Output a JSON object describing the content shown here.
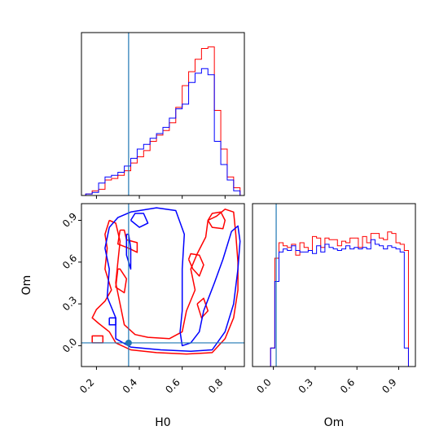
{
  "chart_data": [
    {
      "type": "histogram",
      "panel": "H0 marginal",
      "xlim": [
        0.13,
        0.89
      ],
      "truth": 0.35,
      "bin_edges": [
        0.15,
        0.18,
        0.21,
        0.24,
        0.27,
        0.3,
        0.33,
        0.36,
        0.39,
        0.42,
        0.45,
        0.48,
        0.51,
        0.54,
        0.57,
        0.6,
        0.63,
        0.66,
        0.69,
        0.72,
        0.75,
        0.78,
        0.81,
        0.84,
        0.87
      ],
      "series": [
        {
          "color": "#ff0000",
          "values": [
            0.01,
            0.03,
            0.04,
            0.1,
            0.11,
            0.13,
            0.16,
            0.21,
            0.25,
            0.29,
            0.35,
            0.39,
            0.42,
            0.47,
            0.57,
            0.71,
            0.8,
            0.88,
            0.95,
            0.96,
            0.55,
            0.3,
            0.12,
            0.05
          ]
        },
        {
          "color": "#0000ff",
          "values": [
            0.01,
            0.02,
            0.08,
            0.12,
            0.13,
            0.15,
            0.19,
            0.24,
            0.3,
            0.33,
            0.37,
            0.4,
            0.44,
            0.5,
            0.56,
            0.59,
            0.73,
            0.79,
            0.82,
            0.78,
            0.35,
            0.2,
            0.1,
            0.03
          ]
        }
      ]
    },
    {
      "type": "histogram",
      "panel": "Om marginal",
      "xlabel": "Om",
      "xlim": [
        -0.15,
        1.02
      ],
      "xticks": [
        "0.0",
        "0.3",
        "0.6",
        "0.9"
      ],
      "truth": 0.02,
      "bin_edges": [
        -0.02,
        0.01,
        0.04,
        0.07,
        0.1,
        0.13,
        0.16,
        0.19,
        0.22,
        0.25,
        0.28,
        0.31,
        0.34,
        0.37,
        0.4,
        0.43,
        0.46,
        0.49,
        0.52,
        0.55,
        0.58,
        0.61,
        0.64,
        0.67,
        0.7,
        0.73,
        0.76,
        0.79,
        0.82,
        0.85,
        0.88,
        0.91,
        0.94,
        0.97,
        1.0
      ],
      "series": [
        {
          "color": "#ff0000",
          "values": [
            0.12,
            0.7,
            0.8,
            0.78,
            0.77,
            0.79,
            0.72,
            0.8,
            0.77,
            0.75,
            0.84,
            0.83,
            0.77,
            0.83,
            0.82,
            0.82,
            0.78,
            0.81,
            0.8,
            0.83,
            0.83,
            0.77,
            0.84,
            0.8,
            0.86,
            0.86,
            0.83,
            0.82,
            0.87,
            0.86,
            0.8,
            0.79,
            0.75,
            0.0
          ]
        },
        {
          "color": "#0000ff",
          "values": [
            0.12,
            0.55,
            0.74,
            0.76,
            0.75,
            0.78,
            0.75,
            0.74,
            0.74,
            0.75,
            0.73,
            0.78,
            0.74,
            0.79,
            0.77,
            0.76,
            0.75,
            0.76,
            0.78,
            0.76,
            0.77,
            0.76,
            0.77,
            0.76,
            0.82,
            0.79,
            0.78,
            0.76,
            0.78,
            0.77,
            0.76,
            0.74,
            0.12,
            0.0
          ]
        }
      ]
    },
    {
      "type": "contour",
      "panel": "H0 vs Om",
      "xlabel": "H0",
      "ylabel": "Om",
      "xlim": [
        0.13,
        0.89
      ],
      "ylim": [
        -0.15,
        1.02
      ],
      "xticks": [
        "0.2",
        "0.4",
        "0.6",
        "0.8"
      ],
      "yticks": [
        "0.0",
        "0.3",
        "0.6",
        "0.9"
      ],
      "truth": [
        0.35,
        0.02
      ],
      "series": [
        {
          "color": "#ff0000",
          "contours": [
            [
              [
                0.26,
                0.9
              ],
              [
                0.24,
                0.8
              ],
              [
                0.25,
                0.7
              ],
              [
                0.24,
                0.55
              ],
              [
                0.27,
                0.4
              ],
              [
                0.24,
                0.32
              ],
              [
                0.2,
                0.26
              ],
              [
                0.18,
                0.2
              ],
              [
                0.21,
                0.16
              ],
              [
                0.26,
                0.1
              ],
              [
                0.29,
                0.02
              ],
              [
                0.36,
                -0.03
              ],
              [
                0.48,
                -0.05
              ],
              [
                0.62,
                -0.06
              ],
              [
                0.74,
                -0.05
              ],
              [
                0.8,
                0.05
              ],
              [
                0.84,
                0.2
              ],
              [
                0.86,
                0.4
              ],
              [
                0.86,
                0.6
              ],
              [
                0.85,
                0.8
              ],
              [
                0.84,
                0.96
              ],
              [
                0.8,
                0.98
              ],
              [
                0.76,
                0.93
              ],
              [
                0.72,
                0.9
              ],
              [
                0.71,
                0.78
              ],
              [
                0.67,
                0.66
              ],
              [
                0.64,
                0.55
              ],
              [
                0.66,
                0.4
              ],
              [
                0.62,
                0.25
              ],
              [
                0.6,
                0.1
              ],
              [
                0.54,
                0.05
              ],
              [
                0.44,
                0.06
              ],
              [
                0.38,
                0.08
              ],
              [
                0.33,
                0.15
              ],
              [
                0.31,
                0.3
              ],
              [
                0.29,
                0.45
              ],
              [
                0.3,
                0.6
              ],
              [
                0.31,
                0.75
              ],
              [
                0.29,
                0.88
              ],
              [
                0.26,
                0.9
              ]
            ],
            [
              [
                0.31,
                0.83
              ],
              [
                0.3,
                0.73
              ],
              [
                0.35,
                0.7
              ],
              [
                0.39,
                0.67
              ],
              [
                0.39,
                0.74
              ],
              [
                0.34,
                0.76
              ],
              [
                0.33,
                0.83
              ],
              [
                0.31,
                0.83
              ]
            ],
            [
              [
                0.3,
                0.55
              ],
              [
                0.29,
                0.42
              ],
              [
                0.33,
                0.38
              ],
              [
                0.34,
                0.48
              ],
              [
                0.31,
                0.55
              ],
              [
                0.3,
                0.55
              ]
            ],
            [
              [
                0.18,
                0.02
              ],
              [
                0.23,
                0.02
              ],
              [
                0.23,
                0.07
              ],
              [
                0.18,
                0.07
              ],
              [
                0.18,
                0.02
              ]
            ],
            [
              [
                0.72,
                0.9
              ],
              [
                0.74,
                0.85
              ],
              [
                0.79,
                0.84
              ],
              [
                0.8,
                0.9
              ],
              [
                0.78,
                0.96
              ],
              [
                0.74,
                0.95
              ],
              [
                0.72,
                0.9
              ]
            ],
            [
              [
                0.63,
                0.62
              ],
              [
                0.65,
                0.55
              ],
              [
                0.68,
                0.5
              ],
              [
                0.7,
                0.58
              ],
              [
                0.68,
                0.65
              ],
              [
                0.64,
                0.66
              ],
              [
                0.63,
                0.62
              ]
            ],
            [
              [
                0.67,
                0.3
              ],
              [
                0.69,
                0.2
              ],
              [
                0.72,
                0.25
              ],
              [
                0.7,
                0.34
              ],
              [
                0.67,
                0.3
              ]
            ]
          ]
        },
        {
          "color": "#0000ff",
          "contours": [
            [
              [
                0.26,
                0.85
              ],
              [
                0.24,
                0.7
              ],
              [
                0.26,
                0.55
              ],
              [
                0.25,
                0.35
              ],
              [
                0.29,
                0.2
              ],
              [
                0.29,
                0.05
              ],
              [
                0.36,
                -0.01
              ],
              [
                0.5,
                -0.03
              ],
              [
                0.64,
                -0.04
              ],
              [
                0.74,
                -0.03
              ],
              [
                0.8,
                0.1
              ],
              [
                0.84,
                0.3
              ],
              [
                0.86,
                0.55
              ],
              [
                0.87,
                0.75
              ],
              [
                0.86,
                0.86
              ],
              [
                0.83,
                0.82
              ],
              [
                0.79,
                0.62
              ],
              [
                0.75,
                0.45
              ],
              [
                0.7,
                0.25
              ],
              [
                0.68,
                0.1
              ],
              [
                0.64,
                0.02
              ],
              [
                0.6,
                0.0
              ],
              [
                0.59,
                0.1
              ],
              [
                0.6,
                0.25
              ],
              [
                0.6,
                0.55
              ],
              [
                0.61,
                0.8
              ],
              [
                0.57,
                0.97
              ],
              [
                0.48,
                0.99
              ],
              [
                0.36,
                0.96
              ],
              [
                0.3,
                0.92
              ],
              [
                0.26,
                0.85
              ]
            ],
            [
              [
                0.26,
                0.2
              ],
              [
                0.29,
                0.2
              ],
              [
                0.29,
                0.15
              ],
              [
                0.26,
                0.15
              ],
              [
                0.26,
                0.2
              ]
            ],
            [
              [
                0.34,
                0.8
              ],
              [
                0.34,
                0.65
              ],
              [
                0.36,
                0.55
              ],
              [
                0.36,
                0.7
              ],
              [
                0.35,
                0.8
              ],
              [
                0.34,
                0.8
              ]
            ],
            [
              [
                0.36,
                0.9
              ],
              [
                0.38,
                0.95
              ],
              [
                0.42,
                0.95
              ],
              [
                0.44,
                0.88
              ],
              [
                0.4,
                0.85
              ],
              [
                0.36,
                0.9
              ]
            ]
          ]
        }
      ]
    }
  ]
}
